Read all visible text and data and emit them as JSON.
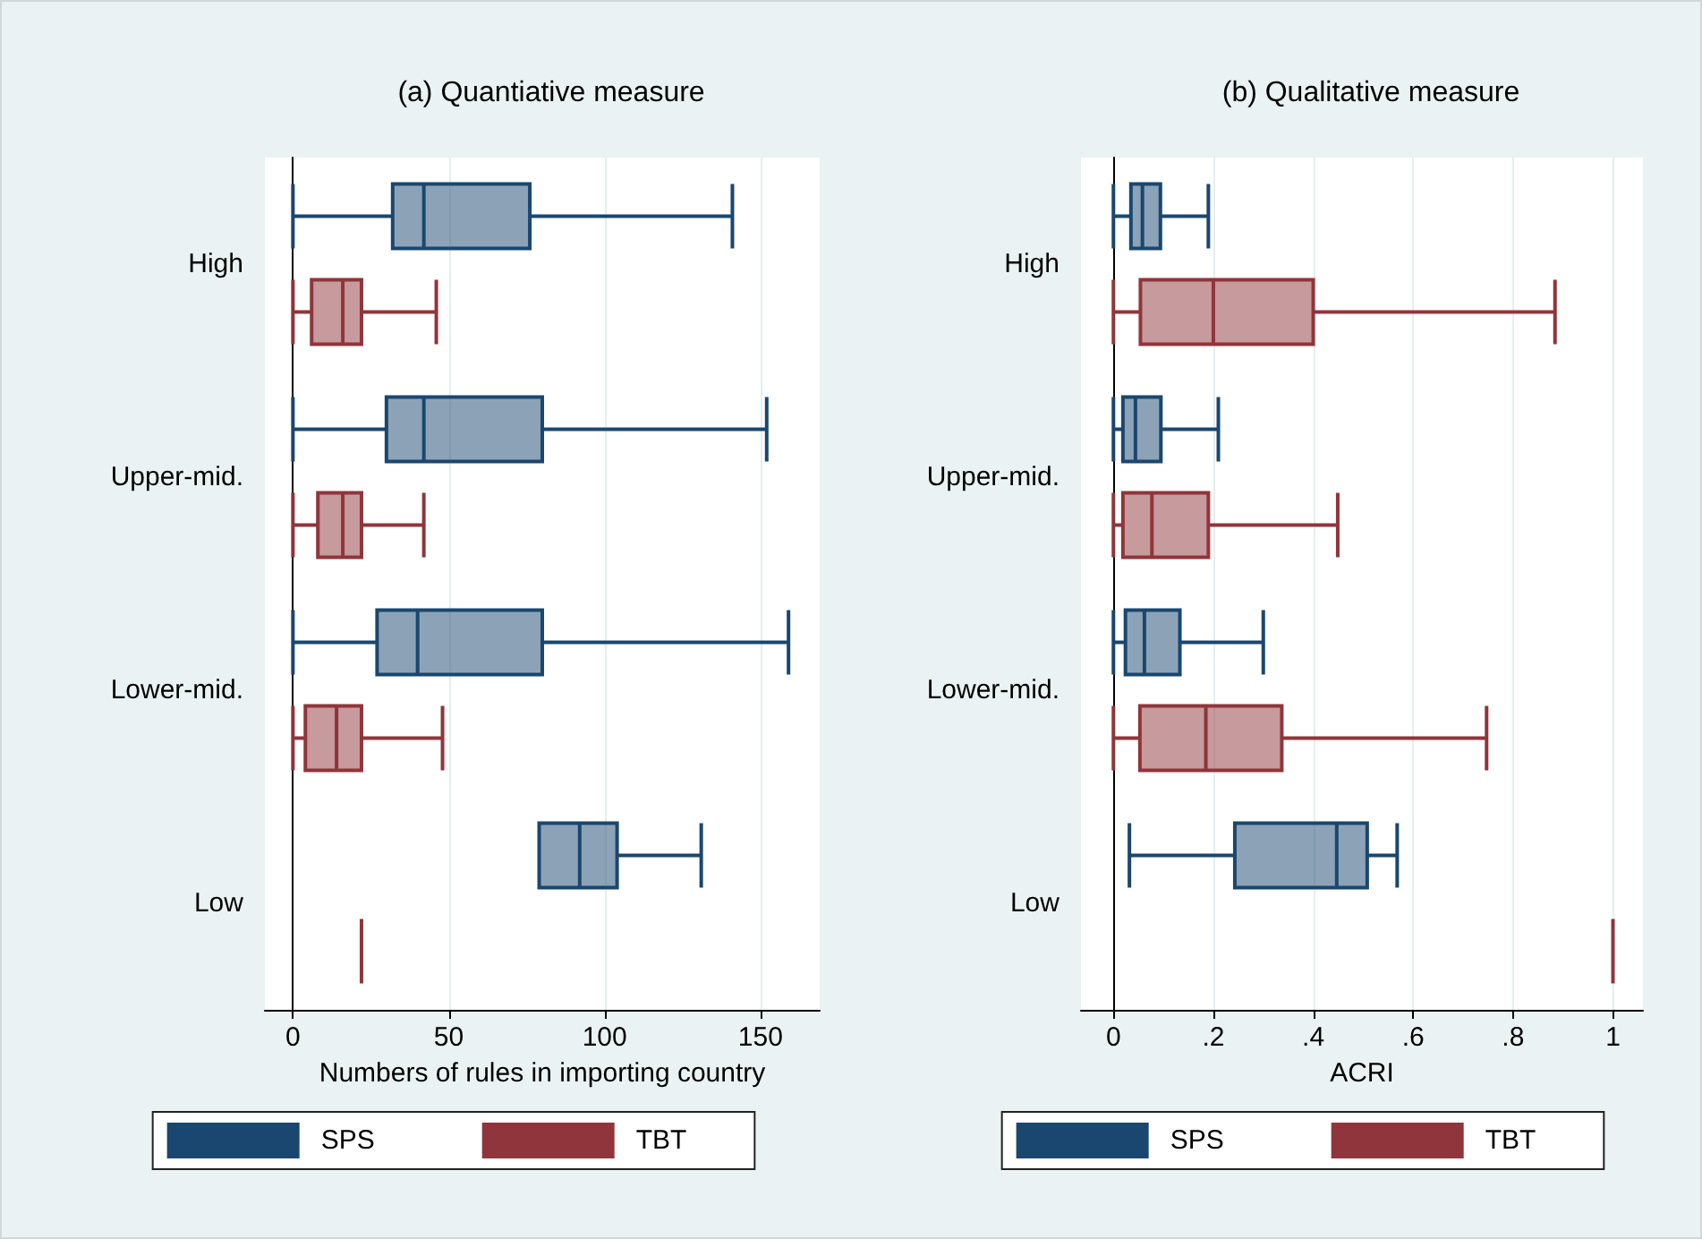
{
  "chart_data": [
    {
      "type": "box",
      "title": "(a) Quantiative measure",
      "xlabel": "Numbers of rules in importing country",
      "orientation": "horizontal",
      "categories": [
        "High",
        "Upper-mid.",
        "Lower-mid.",
        "Low"
      ],
      "series": [
        {
          "name": "SPS",
          "color": "#1a476f",
          "boxes": [
            {
              "low": 0,
              "q1": 32,
              "median": 42,
              "q3": 76,
              "high": 141
            },
            {
              "low": 0,
              "q1": 30,
              "median": 42,
              "q3": 80,
              "high": 152
            },
            {
              "low": 0,
              "q1": 27,
              "median": 40,
              "q3": 80,
              "high": 159
            },
            {
              "low": 79,
              "q1": 79,
              "median": 92,
              "q3": 104,
              "high": 131
            }
          ]
        },
        {
          "name": "TBT",
          "color": "#90353b",
          "boxes": [
            {
              "low": 0,
              "q1": 6,
              "median": 16,
              "q3": 22,
              "high": 46
            },
            {
              "low": 0,
              "q1": 8,
              "median": 16,
              "q3": 22,
              "high": 42
            },
            {
              "low": 0,
              "q1": 4,
              "median": 14,
              "q3": 22,
              "high": 48
            },
            {
              "low": 22,
              "q1": 22,
              "median": 22,
              "q3": 22,
              "high": 22
            }
          ]
        }
      ],
      "xlim": [
        -9,
        169
      ],
      "xticks": [
        0,
        50,
        100,
        150
      ],
      "grid": "x",
      "legend": "bottom"
    },
    {
      "type": "box",
      "title": "(b) Qualitative measure",
      "xlabel": "ACRI",
      "orientation": "horizontal",
      "categories": [
        "High",
        "Upper-mid.",
        "Lower-mid.",
        "Low"
      ],
      "series": [
        {
          "name": "SPS",
          "color": "#1a476f",
          "boxes": [
            {
              "low": 0,
              "q1": 0.035,
              "median": 0.058,
              "q3": 0.094,
              "high": 0.19
            },
            {
              "low": 0,
              "q1": 0.019,
              "median": 0.044,
              "q3": 0.095,
              "high": 0.21
            },
            {
              "low": 0,
              "q1": 0.024,
              "median": 0.062,
              "q3": 0.133,
              "high": 0.3
            },
            {
              "low": 0.032,
              "q1": 0.243,
              "median": 0.447,
              "q3": 0.508,
              "high": 0.568
            }
          ]
        },
        {
          "name": "TBT",
          "color": "#90353b",
          "boxes": [
            {
              "low": 0,
              "q1": 0.054,
              "median": 0.2,
              "q3": 0.4,
              "high": 0.884
            },
            {
              "low": 0,
              "q1": 0.019,
              "median": 0.077,
              "q3": 0.19,
              "high": 0.449
            },
            {
              "low": 0,
              "q1": 0.053,
              "median": 0.185,
              "q3": 0.337,
              "high": 0.747
            },
            {
              "low": 1,
              "q1": 1,
              "median": 1,
              "q3": 1,
              "high": 1
            }
          ]
        }
      ],
      "xlim": [
        -0.065,
        1.06
      ],
      "xticks": [
        0,
        {
          "value": 0.2,
          "label": ".2"
        },
        {
          "value": 0.4,
          "label": ".4"
        },
        {
          "value": 0.6,
          "label": ".6"
        },
        {
          "value": 0.8,
          "label": ".8"
        },
        1
      ],
      "grid": "x",
      "legend": "bottom"
    }
  ]
}
